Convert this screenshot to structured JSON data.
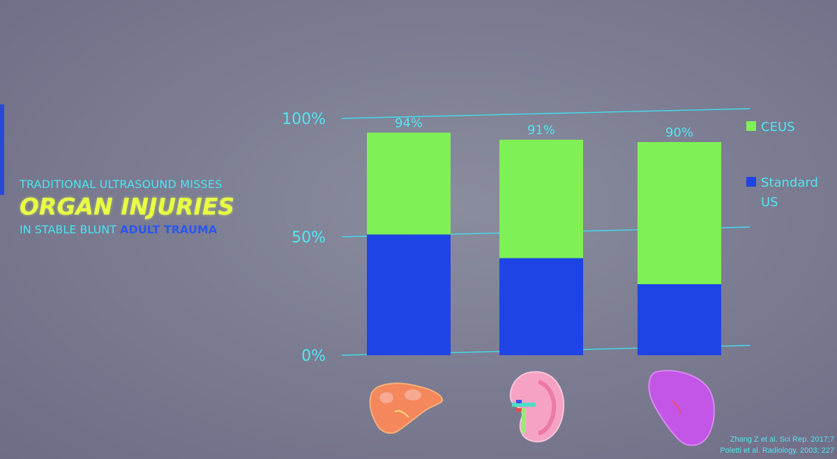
{
  "headline": {
    "line1": "TRADITIONAL ULTRASOUND MISSES",
    "line2": "ORGAN INJURIES",
    "line3_prefix": "IN STABLE BLUNT ",
    "line3_accent": "ADULT TRAUMA"
  },
  "chart_data": {
    "type": "bar",
    "stacked": true,
    "categories": [
      "liver",
      "kidney",
      "spleen"
    ],
    "series": [
      {
        "name": "Standard US",
        "values": [
          51,
          41,
          30
        ],
        "color": "#1f44e6"
      },
      {
        "name": "CEUS",
        "values": [
          43,
          50,
          60
        ],
        "color": "#7ff055"
      }
    ],
    "totals": [
      "94%",
      "91%",
      "90%"
    ],
    "total_values": [
      94,
      91,
      90
    ],
    "ylim": [
      0,
      100
    ],
    "yticks": [
      {
        "value": 0,
        "label": "0%"
      },
      {
        "value": 50,
        "label": "50%"
      },
      {
        "value": 100,
        "label": "100%"
      }
    ],
    "legend": [
      {
        "label": "CEUS",
        "color": "#7ff055"
      },
      {
        "label": "Standard US",
        "color": "#1f44e6"
      }
    ],
    "legend_position": "right",
    "grid": true
  },
  "icons": [
    "liver-icon",
    "kidney-icon",
    "spleen-icon"
  ],
  "citation": {
    "line1": "Zhang Z et al. Sci Rep. 2017;7",
    "line2": "Poletti et al. Radiology. 2003; 227"
  }
}
